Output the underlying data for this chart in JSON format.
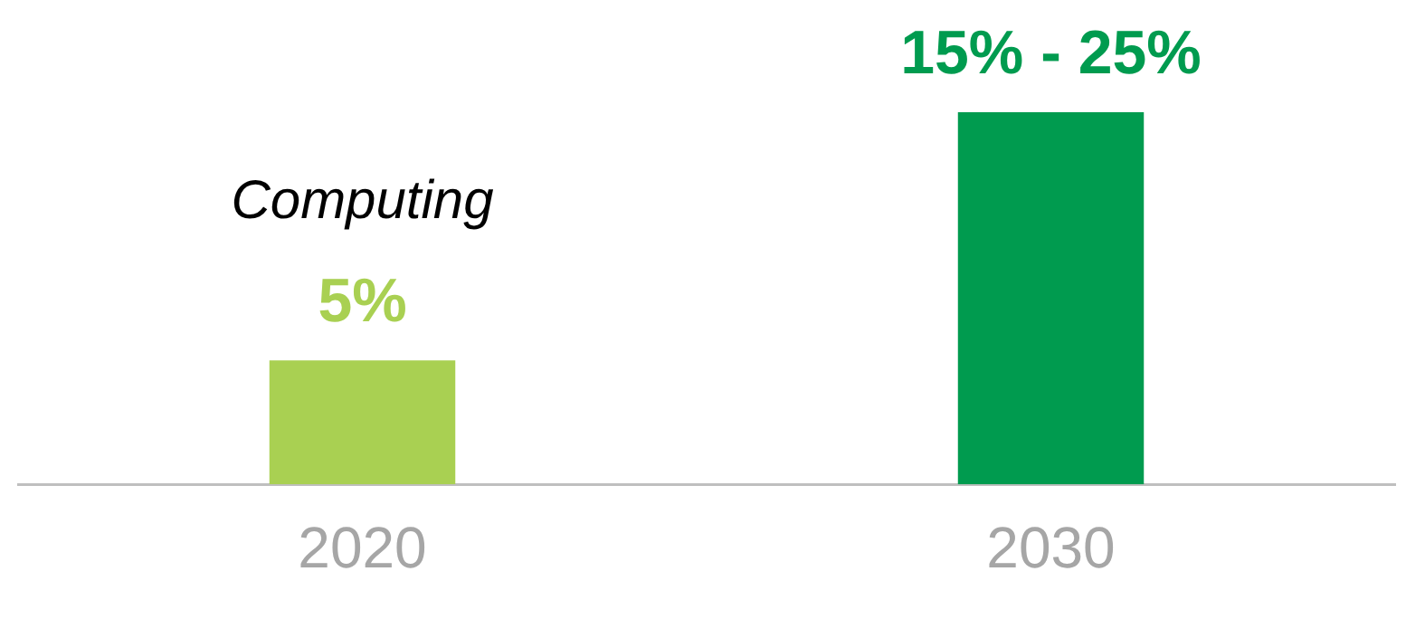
{
  "chart_data": {
    "type": "bar",
    "categories": [
      "2020",
      "2030"
    ],
    "values": [
      5,
      15
    ],
    "colors": [
      "#a9d052",
      "#009b4f"
    ],
    "ylim": [
      0,
      15
    ],
    "tick_labels": "x",
    "value_labels": [
      "5%",
      "15% - 25%"
    ],
    "annotations": [
      "Computing"
    ]
  }
}
